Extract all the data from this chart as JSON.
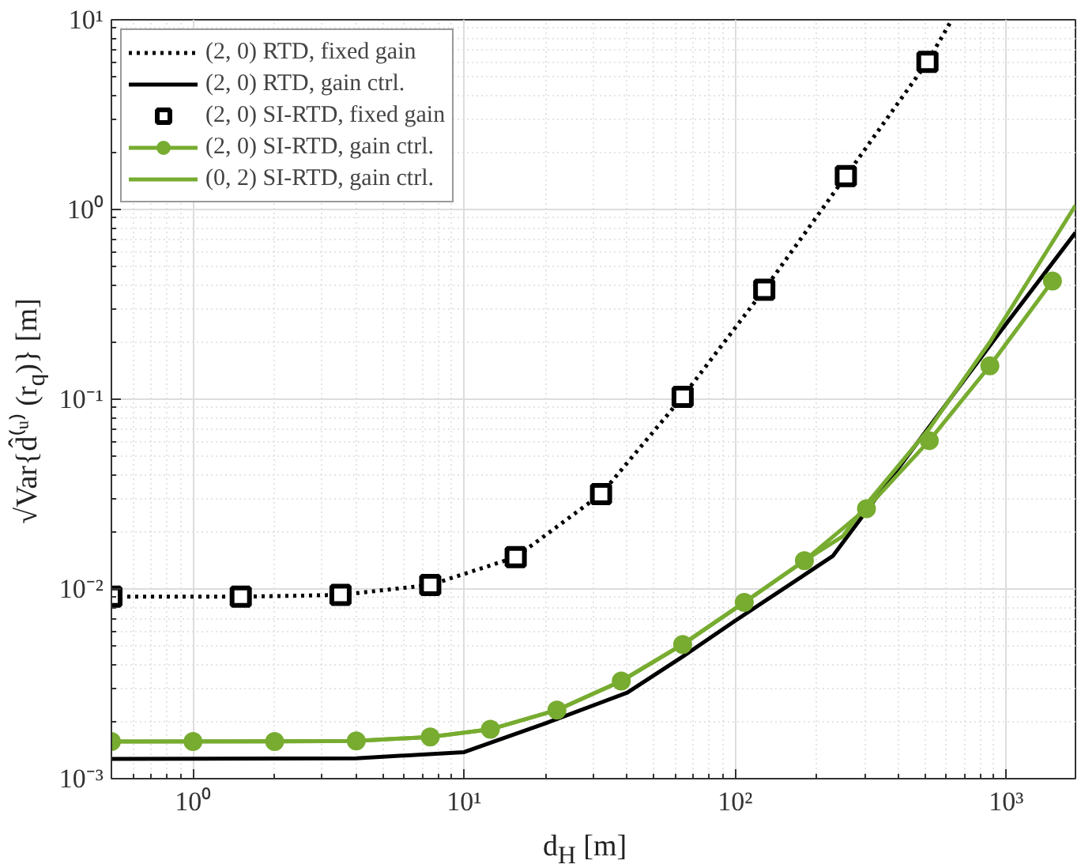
{
  "chart_data": {
    "type": "line",
    "xlabel": "d$_{H}$ [m]",
    "ylabel": "√Var{d̂⁽ᵘ⁾ (r$_{q}$)} [m]",
    "log": "xy",
    "grid": true,
    "legend": "top left",
    "xlim": [
      0.5,
      1800
    ],
    "ylim": [
      0.001,
      10
    ],
    "xticks": [
      {
        "value": 1,
        "label": "10⁰"
      },
      {
        "value": 10,
        "label": "10¹"
      },
      {
        "value": 100,
        "label": "10²"
      },
      {
        "value": 1000,
        "label": "10³"
      }
    ],
    "yticks": [
      {
        "value": 0.001,
        "label": "10⁻³"
      },
      {
        "value": 0.01,
        "label": "10⁻²"
      },
      {
        "value": 0.1,
        "label": "10⁻¹"
      },
      {
        "value": 1,
        "label": "10⁰"
      },
      {
        "value": 10,
        "label": "10¹"
      }
    ],
    "series": [
      {
        "name": "(2, 0) RTD, fixed gain",
        "type": "line",
        "line_style": "dotted",
        "marker": "none",
        "color": "#000000",
        "x": [
          0.5,
          1.5,
          3.5,
          7.5,
          15.5,
          32,
          64,
          128,
          256,
          512,
          630
        ],
        "values": [
          0.0091,
          0.0091,
          0.0093,
          0.0105,
          0.0147,
          0.0316,
          0.103,
          0.378,
          1.5,
          6.0,
          10
        ]
      },
      {
        "name": "(2, 0) RTD, gain ctrl.",
        "type": "line",
        "line_style": "solid",
        "marker": "none",
        "color": "#000000",
        "x": [
          0.5,
          4,
          10,
          20,
          40,
          64,
          100,
          229,
          1000,
          1800
        ],
        "values": [
          0.00127,
          0.00128,
          0.00138,
          0.00196,
          0.00284,
          0.0044,
          0.0068,
          0.0149,
          0.25,
          0.755
        ]
      },
      {
        "name": "(2, 0) SI-RTD, fixed gain",
        "type": "scatter",
        "marker": "square",
        "color": "#000000",
        "x": [
          0.5,
          1.5,
          3.5,
          7.5,
          15.5,
          32,
          64,
          128,
          256,
          512
        ],
        "values": [
          0.0091,
          0.0091,
          0.0093,
          0.0105,
          0.0147,
          0.0316,
          0.103,
          0.378,
          1.5,
          6.0
        ]
      },
      {
        "name": "(2, 0) SI-RTD, gain ctrl.",
        "type": "line",
        "line_style": "solid",
        "marker": "circle",
        "color": "#77ac30",
        "x": [
          0.5,
          1,
          2,
          4,
          7.5,
          12.5,
          22,
          38,
          64,
          108,
          180,
          305,
          520,
          870,
          1480
        ],
        "values": [
          0.00157,
          0.00157,
          0.00157,
          0.00158,
          0.00166,
          0.00182,
          0.0023,
          0.00327,
          0.0051,
          0.0085,
          0.0141,
          0.0265,
          0.0605,
          0.15,
          0.42
        ]
      },
      {
        "name": "(0, 2) SI-RTD, gain ctrl.",
        "type": "line",
        "line_style": "solid",
        "marker": "none",
        "color": "#77ac30",
        "x": [
          0.5,
          4,
          7.5,
          12.5,
          22,
          38,
          64,
          108,
          180,
          250,
          305,
          520,
          870,
          1800
        ],
        "values": [
          0.00157,
          0.00158,
          0.00166,
          0.00182,
          0.0023,
          0.00327,
          0.0051,
          0.0085,
          0.0141,
          0.019,
          0.028,
          0.07,
          0.2,
          1.05
        ]
      }
    ]
  }
}
